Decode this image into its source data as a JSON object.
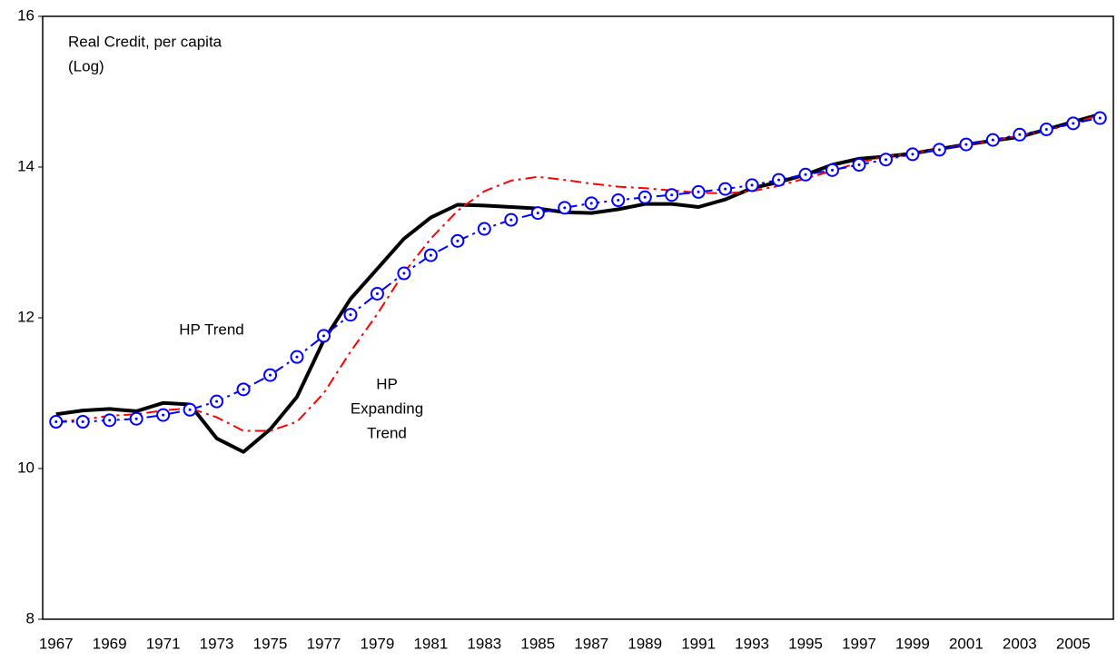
{
  "chart_data": {
    "type": "line",
    "annotations": {
      "title": [
        "Real Credit, per capita",
        "(Log)"
      ],
      "trend": [
        "HP Trend"
      ],
      "expanding": [
        "HP",
        "Expanding",
        "Trend"
      ]
    },
    "categories": [
      "1967",
      null,
      "1969",
      null,
      "1971",
      null,
      "1973",
      null,
      "1975",
      null,
      "1977",
      null,
      "1979",
      null,
      "1981",
      null,
      "1983",
      null,
      "1985",
      null,
      "1987",
      null,
      "1989",
      null,
      "1991",
      null,
      "1993",
      null,
      "1995",
      null,
      "1997",
      null,
      "1999",
      null,
      "2001",
      null,
      "2003",
      null,
      "2005",
      null
    ],
    "series": [
      {
        "color": "#000000",
        "style": "solid",
        "values": [
          10.72,
          10.77,
          10.79,
          10.76,
          10.87,
          10.85,
          10.4,
          10.22,
          10.52,
          10.95,
          11.7,
          12.25,
          12.65,
          13.05,
          13.33,
          13.5,
          13.49,
          13.47,
          13.45,
          13.4,
          13.39,
          13.44,
          13.51,
          13.51,
          13.47,
          13.57,
          13.72,
          13.8,
          13.9,
          14.03,
          14.11,
          14.14,
          14.18,
          14.24,
          14.3,
          14.35,
          14.4,
          14.5,
          14.6,
          14.7
        ]
      },
      {
        "color": "#ff0000",
        "style": "dashdot",
        "values": [
          10.62,
          10.65,
          10.7,
          10.72,
          10.77,
          10.8,
          10.68,
          10.5,
          10.5,
          10.62,
          11.0,
          11.55,
          12.05,
          12.6,
          13.05,
          13.42,
          13.68,
          13.82,
          13.87,
          13.83,
          13.78,
          13.74,
          13.72,
          13.69,
          13.66,
          13.65,
          13.68,
          13.75,
          13.85,
          13.95,
          14.06,
          14.14,
          14.18,
          14.24,
          14.3,
          14.35,
          14.42,
          14.48,
          14.58,
          14.69
        ]
      },
      {
        "color": "#0000ff",
        "style": "dashdot-circles",
        "values": [
          10.62,
          10.62,
          10.64,
          10.66,
          10.71,
          10.78,
          10.89,
          11.05,
          11.24,
          11.48,
          11.76,
          12.04,
          12.32,
          12.59,
          12.83,
          13.02,
          13.18,
          13.3,
          13.39,
          13.46,
          13.52,
          13.56,
          13.6,
          13.63,
          13.67,
          13.71,
          13.76,
          13.83,
          13.9,
          13.96,
          14.03,
          14.1,
          14.17,
          14.23,
          14.3,
          14.36,
          14.43,
          14.5,
          14.58,
          14.65
        ]
      }
    ],
    "ylim": [
      8,
      16
    ],
    "yticks": [
      8,
      10,
      12,
      14,
      16
    ],
    "grid": false
  }
}
